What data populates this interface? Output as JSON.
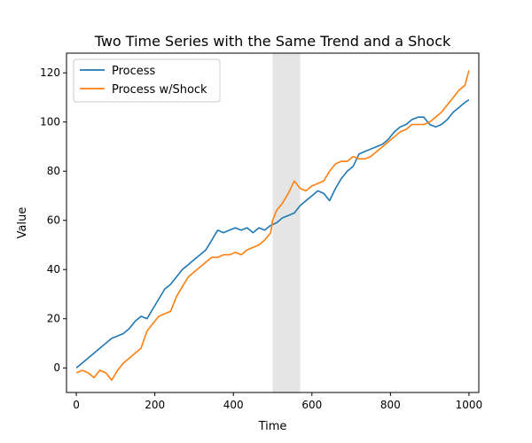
{
  "chart_data": {
    "type": "line",
    "title": "Two Time Series with the Same Trend and a Shock",
    "xlabel": "Time",
    "ylabel": "Value",
    "xlim": [
      -25,
      1025
    ],
    "ylim": [
      -10,
      128
    ],
    "xticks": [
      0,
      200,
      400,
      600,
      800,
      1000
    ],
    "yticks": [
      0,
      20,
      40,
      60,
      80,
      100,
      120
    ],
    "grid": false,
    "legend_position": "upper-left",
    "shaded_region": {
      "x_start": 500,
      "x_end": 570,
      "color": "#e5e5e5"
    },
    "series": [
      {
        "name": "Process",
        "color": "#1f77b4",
        "x": [
          0,
          15,
          30,
          45,
          60,
          75,
          90,
          105,
          120,
          135,
          150,
          165,
          180,
          195,
          210,
          225,
          240,
          255,
          270,
          285,
          300,
          315,
          330,
          345,
          360,
          375,
          390,
          405,
          420,
          435,
          450,
          465,
          480,
          495,
          510,
          525,
          540,
          555,
          570,
          585,
          600,
          615,
          630,
          645,
          660,
          675,
          690,
          705,
          720,
          735,
          750,
          765,
          780,
          795,
          810,
          825,
          840,
          855,
          870,
          885,
          900,
          915,
          930,
          945,
          960,
          975,
          990,
          1000
        ],
        "values": [
          0,
          2,
          4,
          6,
          8,
          10,
          12,
          13,
          14,
          16,
          19,
          21,
          20,
          24,
          28,
          32,
          34,
          37,
          40,
          42,
          44,
          46,
          48,
          52,
          56,
          55,
          56,
          57,
          56,
          57,
          55,
          57,
          56,
          58,
          59,
          61,
          62,
          63,
          66,
          68,
          70,
          72,
          71,
          68,
          73,
          77,
          80,
          82,
          87,
          88,
          89,
          90,
          91,
          93,
          96,
          98,
          99,
          101,
          102,
          102,
          99,
          98,
          99,
          101,
          104,
          106,
          108,
          109
        ]
      },
      {
        "name": "Process w/Shock",
        "color": "#ff7f0e",
        "x": [
          0,
          15,
          30,
          45,
          60,
          75,
          90,
          105,
          120,
          135,
          150,
          165,
          180,
          195,
          210,
          225,
          240,
          255,
          270,
          285,
          300,
          315,
          330,
          345,
          360,
          375,
          390,
          405,
          420,
          435,
          450,
          465,
          480,
          495,
          500,
          510,
          525,
          540,
          555,
          570,
          585,
          600,
          615,
          630,
          645,
          660,
          675,
          690,
          705,
          720,
          735,
          750,
          765,
          780,
          795,
          810,
          825,
          840,
          855,
          870,
          885,
          900,
          915,
          930,
          945,
          960,
          975,
          990,
          1000
        ],
        "values": [
          -2,
          -1,
          -2,
          -4,
          -1,
          -2,
          -5,
          -1,
          2,
          4,
          6,
          8,
          15,
          18,
          21,
          22,
          23,
          29,
          33,
          37,
          39,
          41,
          43,
          45,
          45,
          46,
          46,
          47,
          46,
          48,
          49,
          50,
          52,
          55,
          60,
          64,
          67,
          71,
          76,
          73,
          72,
          74,
          75,
          76,
          80,
          83,
          84,
          84,
          86,
          85,
          85,
          86,
          88,
          90,
          92,
          94,
          96,
          97,
          99,
          99,
          99,
          100,
          102,
          104,
          107,
          110,
          113,
          115,
          121
        ]
      }
    ]
  }
}
